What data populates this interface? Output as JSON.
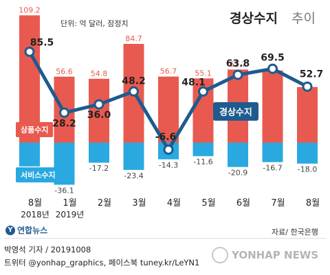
{
  "header": {
    "title": "경상수지",
    "title_suffix": "추이",
    "unit": "단위: 억 달러, 잠정치"
  },
  "legend": {
    "goods": "상품수지",
    "service": "서비스수지",
    "current": "경상수지"
  },
  "colors": {
    "goods": "#e85a4f",
    "service": "#2aa9e0",
    "current": "#1e5b8e"
  },
  "chart_data": {
    "type": "bar",
    "categories": [
      "8월",
      "1월",
      "2월",
      "3월",
      "4월",
      "5월",
      "6월",
      "7월",
      "8월"
    ],
    "category_sublabels": [
      "2018년",
      "2019년",
      "",
      "",
      "",
      "",
      "",
      "",
      ""
    ],
    "series": [
      {
        "name": "상품수지",
        "type": "bar",
        "values": [
          109.2,
          56.6,
          54.8,
          84.7,
          56.7,
          55.1,
          62.7,
          61.9,
          47.7
        ]
      },
      {
        "name": "서비스수지",
        "type": "bar",
        "values": [
          -20.4,
          -36.1,
          -17.2,
          -23.4,
          -14.3,
          -11.6,
          -20.9,
          -16.7,
          -18.0
        ]
      },
      {
        "name": "경상수지",
        "type": "line",
        "values": [
          85.5,
          28.2,
          36.0,
          48.2,
          -6.6,
          48.1,
          63.8,
          69.5,
          52.7
        ]
      }
    ],
    "title": "경상수지 추이",
    "ylim": [
      -40,
      115
    ],
    "grid": false,
    "legend": "inline"
  },
  "footer": {
    "logo_text": "연합뉴스",
    "source": "자료/ 한국은행",
    "credit_line1": "박영석 기자 / 20191008",
    "credit_line2": "트위터 @yonhap_graphics, 페이스북 tuney.kr/LeYN1",
    "agency": "YONHAP NEWS"
  }
}
